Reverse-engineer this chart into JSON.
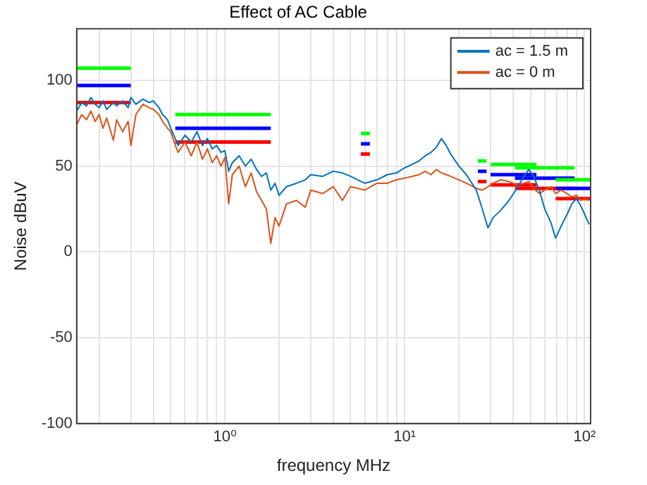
{
  "chart_data": {
    "type": "line",
    "title": "Effect of AC Cable",
    "xlabel": "frequency MHz",
    "ylabel": "Noise dBuV",
    "log": "x",
    "grid": true,
    "legend": "top right",
    "xlim": [
      0.15,
      108
    ],
    "ylim": [
      -100,
      130
    ],
    "xticks": [
      {
        "value": 0.2,
        "label": null
      },
      {
        "value": 0.3,
        "label": null
      },
      {
        "value": 0.4,
        "label": null
      },
      {
        "value": 0.5,
        "label": null
      },
      {
        "value": 0.6,
        "label": null
      },
      {
        "value": 0.7,
        "label": null
      },
      {
        "value": 0.8,
        "label": null
      },
      {
        "value": 0.9,
        "label": null
      },
      {
        "value": 1,
        "label": "10⁰"
      },
      {
        "value": 2,
        "label": null
      },
      {
        "value": 3,
        "label": null
      },
      {
        "value": 4,
        "label": null
      },
      {
        "value": 5,
        "label": null
      },
      {
        "value": 6,
        "label": null
      },
      {
        "value": 7,
        "label": null
      },
      {
        "value": 8,
        "label": null
      },
      {
        "value": 9,
        "label": null
      },
      {
        "value": 10,
        "label": "10¹"
      },
      {
        "value": 20,
        "label": null
      },
      {
        "value": 30,
        "label": null
      },
      {
        "value": 40,
        "label": null
      },
      {
        "value": 50,
        "label": null
      },
      {
        "value": 60,
        "label": null
      },
      {
        "value": 70,
        "label": null
      },
      {
        "value": 80,
        "label": null
      },
      {
        "value": 90,
        "label": null
      },
      {
        "value": 100,
        "label": "10²"
      }
    ],
    "yticks": [
      -100,
      -50,
      0,
      50,
      100
    ],
    "series": [
      {
        "name": "ac = 1.5 m",
        "color": "#0072bd",
        "x": [
          0.15,
          0.16,
          0.17,
          0.18,
          0.19,
          0.2,
          0.21,
          0.22,
          0.24,
          0.25,
          0.27,
          0.29,
          0.3,
          0.32,
          0.35,
          0.38,
          0.4,
          0.43,
          0.45,
          0.48,
          0.5,
          0.53,
          0.55,
          0.6,
          0.65,
          0.7,
          0.75,
          0.8,
          0.85,
          0.9,
          0.95,
          1.0,
          1.05,
          1.1,
          1.2,
          1.3,
          1.4,
          1.5,
          1.6,
          1.7,
          1.8,
          1.9,
          2.0,
          2.2,
          2.5,
          2.8,
          3,
          3.5,
          4,
          4.5,
          5,
          6,
          7,
          8,
          9,
          10,
          11,
          12,
          13,
          14,
          15,
          16,
          17,
          18,
          20,
          22,
          25,
          27,
          29,
          31,
          34,
          38,
          42,
          46,
          49,
          52,
          56,
          60,
          65,
          69,
          74,
          80,
          85,
          90,
          95,
          100,
          106
        ],
        "values": [
          82,
          87,
          85,
          90,
          86,
          84,
          88,
          83,
          87,
          85,
          88,
          84,
          90,
          86,
          89,
          87,
          88,
          84,
          80,
          77,
          72,
          66,
          62,
          68,
          64,
          70,
          62,
          66,
          60,
          62,
          58,
          59,
          47,
          52,
          56,
          50,
          54,
          48,
          44,
          46,
          36,
          40,
          33,
          38,
          40,
          42,
          45,
          44,
          47,
          46,
          44,
          40,
          42,
          45,
          46,
          49,
          51,
          53,
          56,
          58,
          61,
          66,
          62,
          57,
          50,
          45,
          36,
          25,
          14,
          20,
          24,
          30,
          37,
          44,
          48,
          44,
          36,
          25,
          17,
          8,
          15,
          22,
          28,
          31,
          27,
          22,
          16
        ]
      },
      {
        "name": "ac = 0 m",
        "color": "#d95319",
        "x": [
          0.15,
          0.16,
          0.17,
          0.18,
          0.19,
          0.2,
          0.21,
          0.22,
          0.24,
          0.25,
          0.27,
          0.29,
          0.3,
          0.32,
          0.35,
          0.38,
          0.4,
          0.43,
          0.45,
          0.48,
          0.5,
          0.53,
          0.55,
          0.6,
          0.65,
          0.7,
          0.75,
          0.8,
          0.85,
          0.9,
          0.95,
          1.0,
          1.05,
          1.1,
          1.2,
          1.3,
          1.4,
          1.5,
          1.6,
          1.7,
          1.8,
          1.9,
          2.0,
          2.2,
          2.5,
          2.8,
          3,
          3.5,
          4,
          4.5,
          5,
          6,
          7,
          8,
          9,
          10,
          11,
          12,
          13,
          14,
          15,
          16,
          17,
          18,
          20,
          22,
          25,
          27,
          29,
          31,
          34,
          38,
          42,
          46,
          49,
          52,
          56,
          60,
          65,
          69,
          74,
          80,
          85,
          90,
          95,
          100,
          106
        ],
        "values": [
          74,
          80,
          77,
          82,
          76,
          80,
          72,
          78,
          65,
          77,
          70,
          76,
          62,
          80,
          86,
          84,
          83,
          80,
          76,
          72,
          70,
          62,
          58,
          64,
          56,
          64,
          54,
          60,
          52,
          56,
          50,
          55,
          28,
          45,
          50,
          38,
          46,
          35,
          30,
          25,
          5,
          20,
          15,
          28,
          30,
          26,
          36,
          34,
          38,
          30,
          38,
          36,
          40,
          40,
          42,
          43,
          44,
          45,
          47,
          45,
          48,
          46,
          45,
          44,
          42,
          40,
          37,
          36,
          38,
          40,
          42,
          41,
          39,
          40,
          41,
          37,
          34,
          36,
          38,
          34,
          36,
          34,
          32,
          33,
          30,
          31,
          30
        ]
      },
      {
        "color": "#00ff00",
        "x": [
          0.15,
          0.3
        ],
        "values": [
          107,
          107
        ]
      },
      {
        "color": "#00ff00",
        "x": [
          0.53,
          1.8
        ],
        "values": [
          80,
          80
        ]
      },
      {
        "color": "#00ff00",
        "x": [
          5.7,
          6.4
        ],
        "values": [
          69,
          69
        ]
      },
      {
        "color": "#00ff00",
        "x": [
          25.5,
          28.5
        ],
        "values": [
          53,
          53
        ]
      },
      {
        "color": "#00ff00",
        "x": [
          30,
          54
        ],
        "values": [
          51,
          51
        ]
      },
      {
        "color": "#00ff00",
        "x": [
          41,
          88
        ],
        "values": [
          49,
          49
        ]
      },
      {
        "color": "#00ff00",
        "x": [
          69,
          108
        ],
        "values": [
          42,
          42
        ]
      },
      {
        "color": "#0000ff",
        "x": [
          0.15,
          0.3
        ],
        "values": [
          97,
          97
        ]
      },
      {
        "color": "#0000ff",
        "x": [
          0.53,
          1.8
        ],
        "values": [
          72,
          72
        ]
      },
      {
        "color": "#0000ff",
        "x": [
          5.7,
          6.4
        ],
        "values": [
          63,
          63
        ]
      },
      {
        "color": "#0000ff",
        "x": [
          25.5,
          28.5
        ],
        "values": [
          47,
          47
        ]
      },
      {
        "color": "#0000ff",
        "x": [
          30,
          54
        ],
        "values": [
          45,
          45
        ]
      },
      {
        "color": "#0000ff",
        "x": [
          41,
          88
        ],
        "values": [
          43,
          43
        ]
      },
      {
        "color": "#0000ff",
        "x": [
          69,
          108
        ],
        "values": [
          37,
          37
        ]
      },
      {
        "color": "#ff0000",
        "x": [
          0.15,
          0.3
        ],
        "values": [
          87,
          87
        ]
      },
      {
        "color": "#ff0000",
        "x": [
          0.53,
          1.8
        ],
        "values": [
          64,
          64
        ]
      },
      {
        "color": "#ff0000",
        "x": [
          5.7,
          6.4
        ],
        "values": [
          57,
          57
        ]
      },
      {
        "color": "#ff0000",
        "x": [
          25.5,
          28.5
        ],
        "values": [
          41,
          41
        ]
      },
      {
        "color": "#ff0000",
        "x": [
          30,
          54
        ],
        "values": [
          39,
          39
        ]
      },
      {
        "color": "#ff0000",
        "x": [
          41,
          88
        ],
        "values": [
          37,
          37
        ]
      },
      {
        "color": "#ff0000",
        "x": [
          69,
          108
        ],
        "values": [
          31,
          31
        ]
      }
    ]
  }
}
